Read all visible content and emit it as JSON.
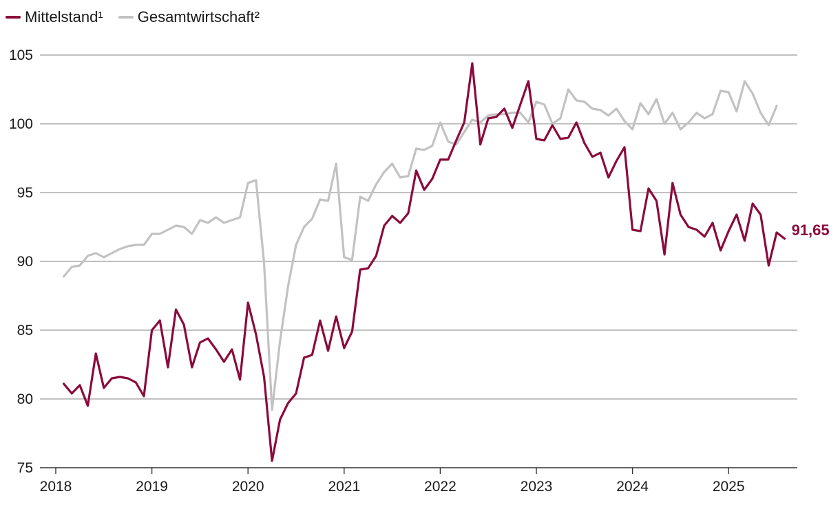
{
  "chart_data": {
    "type": "line",
    "title": "",
    "xlabel": "",
    "ylabel": "",
    "ylim": [
      75,
      105
    ],
    "xlim": [
      2018,
      2025.75
    ],
    "yticks": [
      "75",
      "80",
      "85",
      "90",
      "95",
      "100",
      "105"
    ],
    "xticks": [
      "2018",
      "2019",
      "2020",
      "2021",
      "2022",
      "2023",
      "2024",
      "2025"
    ],
    "grid": "horizontal",
    "legend_position": "top-left",
    "end_label": "91,65",
    "series": [
      {
        "name": "Mittelstand¹",
        "color": "#8b0a3c",
        "points": [
          [
            2018.083,
            81.1
          ],
          [
            2018.167,
            80.4
          ],
          [
            2018.25,
            81.0
          ],
          [
            2018.333,
            79.5
          ],
          [
            2018.417,
            83.3
          ],
          [
            2018.5,
            80.8
          ],
          [
            2018.583,
            81.5
          ],
          [
            2018.667,
            81.6
          ],
          [
            2018.75,
            81.5
          ],
          [
            2018.833,
            81.2
          ],
          [
            2018.917,
            80.2
          ],
          [
            2019.0,
            85.0
          ],
          [
            2019.083,
            85.7
          ],
          [
            2019.167,
            82.3
          ],
          [
            2019.25,
            86.5
          ],
          [
            2019.333,
            85.4
          ],
          [
            2019.417,
            82.3
          ],
          [
            2019.5,
            84.1
          ],
          [
            2019.583,
            84.4
          ],
          [
            2019.667,
            83.6
          ],
          [
            2019.75,
            82.7
          ],
          [
            2019.833,
            83.6
          ],
          [
            2019.917,
            81.4
          ],
          [
            2020.0,
            87.0
          ],
          [
            2020.083,
            84.7
          ],
          [
            2020.167,
            81.6
          ],
          [
            2020.25,
            75.5
          ],
          [
            2020.333,
            78.5
          ],
          [
            2020.417,
            79.7
          ],
          [
            2020.5,
            80.4
          ],
          [
            2020.583,
            83.0
          ],
          [
            2020.667,
            83.2
          ],
          [
            2020.75,
            85.7
          ],
          [
            2020.833,
            83.5
          ],
          [
            2020.917,
            86.0
          ],
          [
            2021.0,
            83.7
          ],
          [
            2021.083,
            84.9
          ],
          [
            2021.167,
            89.4
          ],
          [
            2021.25,
            89.5
          ],
          [
            2021.333,
            90.4
          ],
          [
            2021.417,
            92.6
          ],
          [
            2021.5,
            93.3
          ],
          [
            2021.583,
            92.8
          ],
          [
            2021.667,
            93.5
          ],
          [
            2021.75,
            96.6
          ],
          [
            2021.833,
            95.2
          ],
          [
            2021.917,
            96.0
          ],
          [
            2022.0,
            97.4
          ],
          [
            2022.083,
            97.4
          ],
          [
            2022.167,
            98.8
          ],
          [
            2022.25,
            100.1
          ],
          [
            2022.333,
            104.4
          ],
          [
            2022.417,
            98.5
          ],
          [
            2022.5,
            100.4
          ],
          [
            2022.583,
            100.5
          ],
          [
            2022.667,
            101.1
          ],
          [
            2022.75,
            99.7
          ],
          [
            2022.833,
            101.4
          ],
          [
            2022.917,
            103.1
          ],
          [
            2023.0,
            98.9
          ],
          [
            2023.083,
            98.8
          ],
          [
            2023.167,
            99.9
          ],
          [
            2023.25,
            98.9
          ],
          [
            2023.333,
            99.0
          ],
          [
            2023.417,
            100.1
          ],
          [
            2023.5,
            98.6
          ],
          [
            2023.583,
            97.6
          ],
          [
            2023.667,
            97.9
          ],
          [
            2023.75,
            96.1
          ],
          [
            2023.833,
            97.3
          ],
          [
            2023.917,
            98.3
          ],
          [
            2024.0,
            92.3
          ],
          [
            2024.083,
            92.2
          ],
          [
            2024.167,
            95.3
          ],
          [
            2024.25,
            94.4
          ],
          [
            2024.333,
            90.5
          ],
          [
            2024.417,
            95.7
          ],
          [
            2024.5,
            93.4
          ],
          [
            2024.583,
            92.5
          ],
          [
            2024.667,
            92.3
          ],
          [
            2024.75,
            91.8
          ],
          [
            2024.833,
            92.8
          ],
          [
            2024.917,
            90.8
          ],
          [
            2025.0,
            92.2
          ],
          [
            2025.083,
            93.4
          ],
          [
            2025.167,
            91.5
          ],
          [
            2025.25,
            94.2
          ],
          [
            2025.333,
            93.4
          ],
          [
            2025.417,
            89.7
          ],
          [
            2025.5,
            92.1
          ],
          [
            2025.583,
            91.65
          ]
        ]
      },
      {
        "name": "Gesamtwirtschaft²",
        "color": "#c2c2c2",
        "points": [
          [
            2018.083,
            88.9
          ],
          [
            2018.167,
            89.6
          ],
          [
            2018.25,
            89.7
          ],
          [
            2018.333,
            90.4
          ],
          [
            2018.417,
            90.6
          ],
          [
            2018.5,
            90.3
          ],
          [
            2018.583,
            90.6
          ],
          [
            2018.667,
            90.9
          ],
          [
            2018.75,
            91.1
          ],
          [
            2018.833,
            91.2
          ],
          [
            2018.917,
            91.2
          ],
          [
            2019.0,
            92.0
          ],
          [
            2019.083,
            92.0
          ],
          [
            2019.167,
            92.3
          ],
          [
            2019.25,
            92.6
          ],
          [
            2019.333,
            92.5
          ],
          [
            2019.417,
            92.0
          ],
          [
            2019.5,
            93.0
          ],
          [
            2019.583,
            92.8
          ],
          [
            2019.667,
            93.2
          ],
          [
            2019.75,
            92.8
          ],
          [
            2019.833,
            93.0
          ],
          [
            2019.917,
            93.2
          ],
          [
            2020.0,
            95.7
          ],
          [
            2020.083,
            95.9
          ],
          [
            2020.167,
            89.9
          ],
          [
            2020.25,
            79.2
          ],
          [
            2020.333,
            84.2
          ],
          [
            2020.417,
            88.2
          ],
          [
            2020.5,
            91.2
          ],
          [
            2020.583,
            92.5
          ],
          [
            2020.667,
            93.1
          ],
          [
            2020.75,
            94.5
          ],
          [
            2020.833,
            94.4
          ],
          [
            2020.917,
            97.1
          ],
          [
            2021.0,
            90.3
          ],
          [
            2021.083,
            90.1
          ],
          [
            2021.167,
            94.7
          ],
          [
            2021.25,
            94.4
          ],
          [
            2021.333,
            95.6
          ],
          [
            2021.417,
            96.5
          ],
          [
            2021.5,
            97.1
          ],
          [
            2021.583,
            96.1
          ],
          [
            2021.667,
            96.2
          ],
          [
            2021.75,
            98.2
          ],
          [
            2021.833,
            98.1
          ],
          [
            2021.917,
            98.4
          ],
          [
            2022.0,
            100.1
          ],
          [
            2022.083,
            98.7
          ],
          [
            2022.167,
            98.5
          ],
          [
            2022.25,
            99.4
          ],
          [
            2022.333,
            100.3
          ],
          [
            2022.417,
            100.1
          ],
          [
            2022.5,
            100.6
          ],
          [
            2022.583,
            100.7
          ],
          [
            2022.667,
            100.7
          ],
          [
            2022.75,
            100.8
          ],
          [
            2022.833,
            100.8
          ],
          [
            2022.917,
            100.1
          ],
          [
            2023.0,
            101.6
          ],
          [
            2023.083,
            101.4
          ],
          [
            2023.167,
            100.0
          ],
          [
            2023.25,
            100.4
          ],
          [
            2023.333,
            102.5
          ],
          [
            2023.417,
            101.7
          ],
          [
            2023.5,
            101.6
          ],
          [
            2023.583,
            101.1
          ],
          [
            2023.667,
            101.0
          ],
          [
            2023.75,
            100.6
          ],
          [
            2023.833,
            101.1
          ],
          [
            2023.917,
            100.2
          ],
          [
            2024.0,
            99.6
          ],
          [
            2024.083,
            101.5
          ],
          [
            2024.167,
            100.7
          ],
          [
            2024.25,
            101.8
          ],
          [
            2024.333,
            100.0
          ],
          [
            2024.417,
            100.8
          ],
          [
            2024.5,
            99.6
          ],
          [
            2024.583,
            100.1
          ],
          [
            2024.667,
            100.8
          ],
          [
            2024.75,
            100.4
          ],
          [
            2024.833,
            100.7
          ],
          [
            2024.917,
            102.4
          ],
          [
            2025.0,
            102.3
          ],
          [
            2025.083,
            100.9
          ],
          [
            2025.167,
            103.1
          ],
          [
            2025.25,
            102.2
          ],
          [
            2025.333,
            100.8
          ],
          [
            2025.417,
            99.9
          ],
          [
            2025.5,
            101.3
          ]
        ]
      }
    ]
  }
}
